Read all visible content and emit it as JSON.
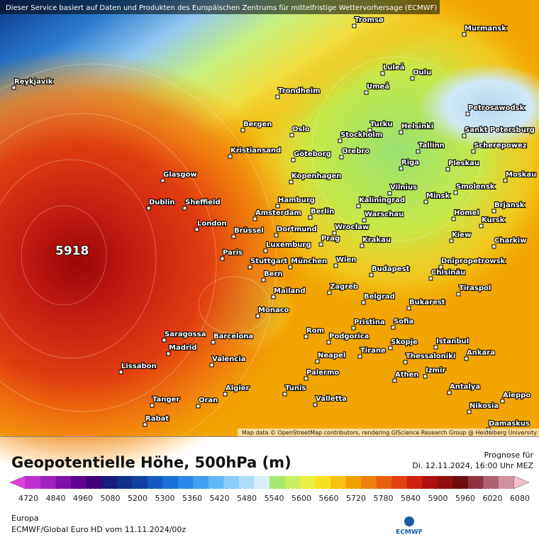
{
  "header": {
    "notice": "Dieser Service basiert auf Daten und Produkten des Europäischen Zentrums für mittelfristige Wettervorhersage (ECMWF)"
  },
  "map": {
    "center_label": "5918",
    "attribution": "Map data © OpenStreetMap contributors, rendering GIScience Research Group @ Heidelberg University",
    "cities": [
      "Tromsø",
      "Murmansk",
      "Luleå",
      "Oulu",
      "Umeå",
      "Reykjavik",
      "Trondheim",
      "Petrosawodsk",
      "Bergen",
      "Oslo",
      "Turku",
      "Helsinki",
      "Stockholm",
      "Sankt Petersburg",
      "Kristiansand",
      "Göteborg",
      "Orebro",
      "Tallinn",
      "Scherepowez",
      "Glasgow",
      "Kopenhagen",
      "Riga",
      "Pleskau",
      "Moskau",
      "Hamburg",
      "Kaliningrad",
      "Vilnius",
      "Minsk",
      "Smolensk",
      "Dublin",
      "Sheffield",
      "Amsterdam",
      "Berlin",
      "Warschau",
      "Brjansk",
      "Homel",
      "Kursk",
      "London",
      "Brüssel",
      "Dortmund",
      "Wrocław",
      "Krakau",
      "Kiew",
      "Charkiw",
      "Prag",
      "Luxemburg",
      "Paris",
      "Stuttgart",
      "München",
      "Wien",
      "Dnipropetrowsk",
      "Budapest",
      "Chisinău",
      "Bern",
      "Tiraspol",
      "Mailand",
      "Zagreb",
      "Belgrad",
      "Bukarest",
      "Monaco",
      "Pristina",
      "Sofia",
      "Rom",
      "Istanbul",
      "Saragossa",
      "Barcelona",
      "Podgorica",
      "Skopje",
      "Madrid",
      "Tirane",
      "Neapel",
      "Thessaloniki",
      "Ankara",
      "Valencia",
      "Lissabon",
      "Izmir",
      "Palermo",
      "Athen",
      "Algier",
      "Tunis",
      "Antalya",
      "Aleppo",
      "Tanger",
      "Oran",
      "Valletta",
      "Nikosia",
      "Rabat",
      "Damaskus"
    ]
  },
  "footer": {
    "title": "Geopotentielle Höhe, 500hPa (m)",
    "forecast_label": "Prognose für",
    "forecast_time": "Di. 12.11.2024, 16:00 Uhr MEZ",
    "region": "Europa",
    "model_run": "ECMWF/Global Euro HD vom  11.11.2024/00z",
    "logo": "ECMWF",
    "colorbar": {
      "ticks": [
        4720,
        4840,
        4960,
        5080,
        5200,
        5300,
        5360,
        5420,
        5480,
        5540,
        5600,
        5660,
        5720,
        5780,
        5840,
        5900,
        5960,
        6020,
        6080
      ],
      "colors": [
        "#e040e0",
        "#c030d0",
        "#a020c0",
        "#8010a8",
        "#600090",
        "#40007a",
        "#1a1a80",
        "#10308a",
        "#1040a0",
        "#1558c0",
        "#1a70d8",
        "#2a88e8",
        "#40a0f0",
        "#60b8f8",
        "#88ccf8",
        "#b0def8",
        "#d8eef8",
        "#a8e870",
        "#c8f060",
        "#e8f040",
        "#f8e020",
        "#f8c010",
        "#f0a000",
        "#f08010",
        "#e86010",
        "#e04010",
        "#d02010",
        "#b01010",
        "#901010",
        "#700a10",
        "#903040",
        "#b06070",
        "#d090a0",
        "#f0c0c8"
      ]
    }
  }
}
